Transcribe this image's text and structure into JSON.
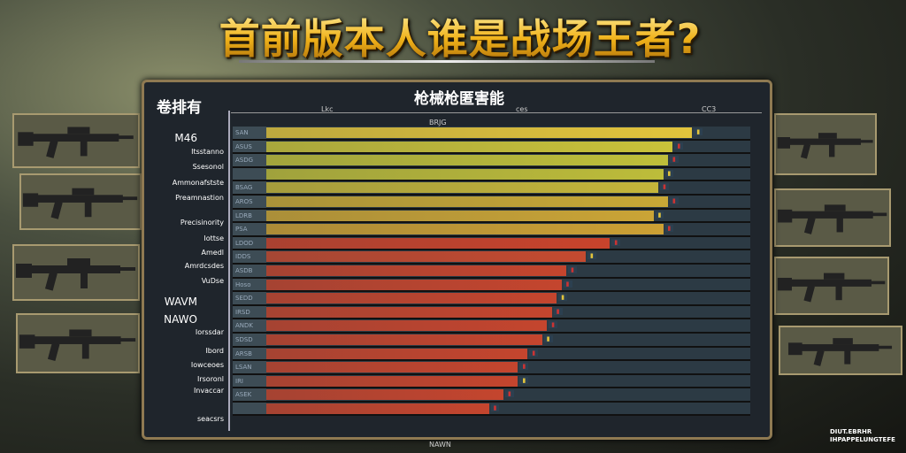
{
  "title": "首前版本人谁是战场王者?",
  "panel": {
    "left_heading": "卷排有",
    "heading": "枪械枪匿害能",
    "axis_labels": [
      "Lkc",
      "ces",
      "CC3"
    ],
    "column_header": "BRJG"
  },
  "labels": [
    "M46",
    "Itsstanno",
    "Ssesonol",
    "Ammonafstste",
    "Preamnastion",
    "Precisinority",
    "Iottse",
    "Amedl",
    "Amrdcsdes",
    "VuDse",
    "WAVM",
    "NAWO",
    "Iorssdar",
    "Ibord",
    "Iowceoes",
    "Irsoronl",
    "Invaccar",
    "seacsrs"
  ],
  "rows": [
    {
      "name": "SAN",
      "fill": 88,
      "color": "#e2c43c"
    },
    {
      "name": "ASUS",
      "fill": 84,
      "color": "#c9c23a"
    },
    {
      "name": "ASDG",
      "fill": 83,
      "color": "#bfbf3a"
    },
    {
      "name": "",
      "fill": 82,
      "color": "#bdbc3a"
    },
    {
      "name": "BSAG",
      "fill": 81,
      "color": "#c4b53a"
    },
    {
      "name": "AROS",
      "fill": 83,
      "color": "#c8a836"
    },
    {
      "name": "LDRB",
      "fill": 80,
      "color": "#caa436"
    },
    {
      "name": "PSA",
      "fill": 82,
      "color": "#cca034"
    },
    {
      "name": "LDOD",
      "fill": 71,
      "color": "#c9432c"
    },
    {
      "name": "IDDS",
      "fill": 66,
      "color": "#c44a30"
    },
    {
      "name": "ASDB",
      "fill": 62,
      "color": "#c4452e"
    },
    {
      "name": "Hoso",
      "fill": 61,
      "color": "#c4452e"
    },
    {
      "name": "SEDD",
      "fill": 60,
      "color": "#c4452e"
    },
    {
      "name": "IRSD",
      "fill": 59,
      "color": "#c4452e"
    },
    {
      "name": "ANDK",
      "fill": 58,
      "color": "#c4452e"
    },
    {
      "name": "SDSD",
      "fill": 57,
      "color": "#c4452e"
    },
    {
      "name": "ARSB",
      "fill": 54,
      "color": "#c4452e"
    },
    {
      "name": "LSAN",
      "fill": 52,
      "color": "#c4452e"
    },
    {
      "name": "IRI",
      "fill": 52,
      "color": "#c4452e"
    },
    {
      "name": "ASEK",
      "fill": 49,
      "color": "#c4452e"
    },
    {
      "name": "",
      "fill": 46,
      "color": "#c4452e"
    }
  ],
  "footer": "NAWN",
  "watermark": [
    "DIUT.EBRHR",
    "IHPAPPELUNGTEFE"
  ]
}
